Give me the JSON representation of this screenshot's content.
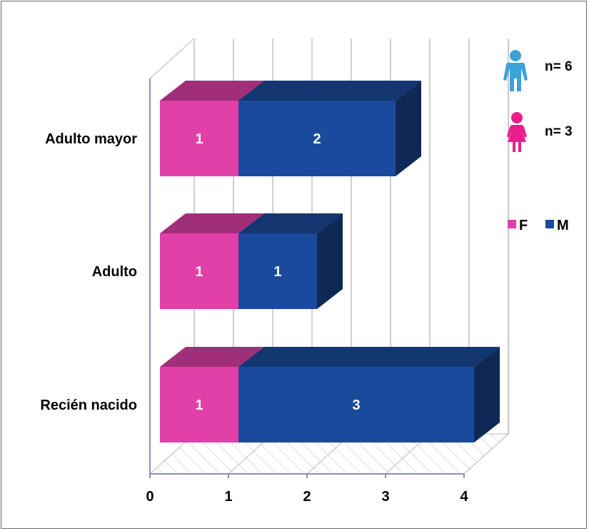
{
  "chart_data": {
    "type": "bar",
    "orientation": "horizontal",
    "stacked": true,
    "three_d": true,
    "categories": [
      "Recién nacido",
      "Adulto",
      "Adulto mayor"
    ],
    "series": [
      {
        "name": "F",
        "values": [
          1,
          1,
          1
        ],
        "color": "#e040a8"
      },
      {
        "name": "M",
        "values": [
          3,
          1,
          2
        ],
        "color": "#1a4a9c"
      }
    ],
    "xlim": [
      0,
      4
    ],
    "xticks": [
      "0",
      "1",
      "2",
      "3",
      "4"
    ],
    "grid": true,
    "legend": "right"
  },
  "counts": {
    "male": {
      "label": "n= 6",
      "icon": "male-person-icon",
      "color": "#3ba3d8"
    },
    "female": {
      "label": "n= 3",
      "icon": "female-person-icon",
      "color": "#e81f8c"
    }
  }
}
